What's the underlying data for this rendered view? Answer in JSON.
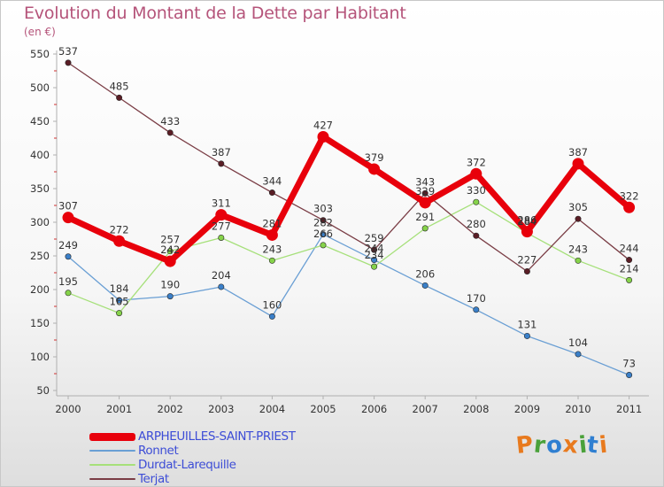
{
  "header": {
    "title": "Evolution du Montant de la Dette par Habitant",
    "unit": "(en €)"
  },
  "logo": {
    "text": "Proxiti",
    "letter_colors": [
      "#e87a1e",
      "#4aa13a",
      "#2f7fd1",
      "#e87a1e",
      "#4aa13a",
      "#2f7fd1",
      "#e87a1e"
    ]
  },
  "chart_data": {
    "type": "line",
    "title": "Evolution du Montant de la Dette par Habitant",
    "subtitle": "(en €)",
    "xlabel": "",
    "ylabel": "",
    "x": [
      "2000",
      "2001",
      "2002",
      "2003",
      "2004",
      "2005",
      "2006",
      "2007",
      "2008",
      "2009",
      "2010",
      "2011"
    ],
    "ylim": [
      50,
      550
    ],
    "yticks": [
      50,
      100,
      150,
      200,
      250,
      300,
      350,
      400,
      450,
      500,
      550
    ],
    "grid": false,
    "legend_position": "bottom-left",
    "series": [
      {
        "name": "ARPHEUILLES-SAINT-PRIEST",
        "color": "#e8000b",
        "marker": "#e8000b",
        "width": 7,
        "values": [
          307,
          272,
          242,
          311,
          281,
          427,
          379,
          329,
          372,
          286,
          387,
          322
        ]
      },
      {
        "name": "Ronnet",
        "color": "#6a9fd4",
        "marker": "#3a7fc8",
        "width": 1.3,
        "values": [
          249,
          184,
          190,
          204,
          160,
          282,
          244,
          206,
          170,
          131,
          104,
          73
        ]
      },
      {
        "name": "Durdat-Larequille",
        "color": "#a6e07a",
        "marker": "#86d34a",
        "width": 1.3,
        "values": [
          195,
          165,
          257,
          277,
          243,
          266,
          234,
          291,
          330,
          284,
          243,
          214
        ]
      },
      {
        "name": "Terjat",
        "color": "#7a3d45",
        "marker": "#5a1d25",
        "width": 1.3,
        "values": [
          537,
          485,
          433,
          387,
          344,
          303,
          259,
          343,
          280,
          227,
          305,
          244
        ]
      }
    ]
  }
}
